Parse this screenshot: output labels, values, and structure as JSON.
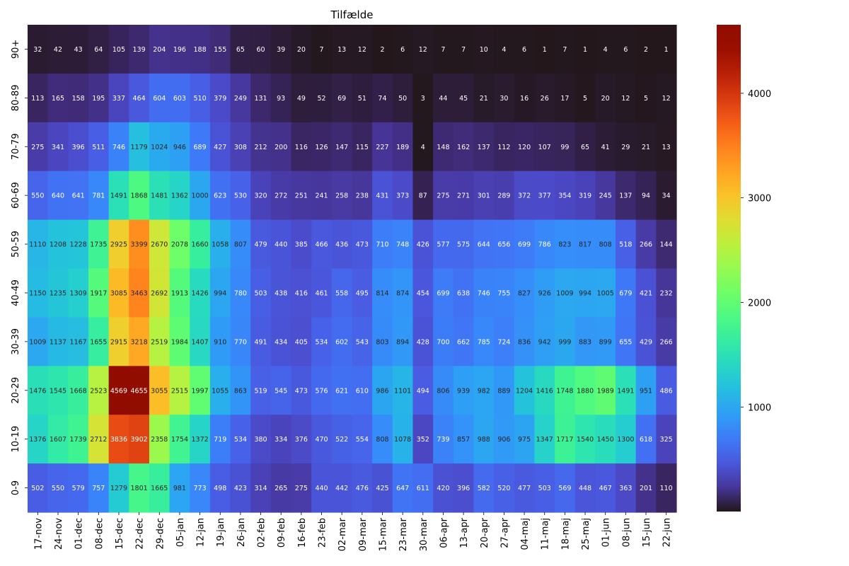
{
  "chart_data": {
    "type": "heatmap",
    "title": "Tilfælde",
    "x_categories": [
      "17-nov",
      "24-nov",
      "01-dec",
      "08-dec",
      "15-dec",
      "22-dec",
      "29-dec",
      "05-jan",
      "12-jan",
      "19-jan",
      "26-jan",
      "02-feb",
      "09-feb",
      "16-feb",
      "23-feb",
      "02-mar",
      "09-mar",
      "15-mar",
      "23-mar",
      "30-mar",
      "06-apr",
      "13-apr",
      "20-apr",
      "27-apr",
      "04-maj",
      "11-maj",
      "18-maj",
      "25-maj",
      "01-jun",
      "08-jun",
      "15-jun",
      "22-jun"
    ],
    "y_categories": [
      "90+",
      "80-89",
      "70-79",
      "60-69",
      "50-59",
      "40-49",
      "30-39",
      "20-29",
      "10-19",
      "0-9"
    ],
    "values": [
      [
        32,
        42,
        43,
        64,
        105,
        139,
        204,
        196,
        188,
        155,
        65,
        60,
        39,
        20,
        7,
        13,
        12,
        2,
        6,
        12,
        7,
        7,
        10,
        4,
        6,
        1,
        7,
        1,
        4,
        6,
        2,
        1
      ],
      [
        113,
        165,
        158,
        195,
        337,
        464,
        604,
        603,
        510,
        379,
        249,
        131,
        93,
        49,
        52,
        69,
        51,
        74,
        50,
        3,
        44,
        45,
        21,
        30,
        16,
        26,
        17,
        5,
        20,
        12,
        5,
        12
      ],
      [
        275,
        341,
        396,
        511,
        746,
        1179,
        1024,
        946,
        689,
        427,
        308,
        212,
        200,
        116,
        126,
        147,
        115,
        227,
        189,
        4,
        148,
        162,
        137,
        112,
        120,
        107,
        99,
        65,
        41,
        29,
        21,
        13
      ],
      [
        550,
        640,
        641,
        781,
        1491,
        1868,
        1481,
        1362,
        1000,
        623,
        530,
        320,
        272,
        251,
        241,
        258,
        238,
        431,
        373,
        87,
        275,
        271,
        301,
        289,
        372,
        377,
        354,
        319,
        245,
        137,
        94,
        34
      ],
      [
        1110,
        1208,
        1228,
        1735,
        2925,
        3399,
        2670,
        2078,
        1660,
        1058,
        807,
        479,
        440,
        385,
        466,
        436,
        473,
        710,
        748,
        426,
        577,
        575,
        644,
        656,
        699,
        786,
        823,
        817,
        808,
        518,
        266,
        144
      ],
      [
        1150,
        1235,
        1309,
        1917,
        3085,
        3463,
        2692,
        1913,
        1426,
        994,
        780,
        503,
        438,
        416,
        461,
        558,
        495,
        814,
        874,
        454,
        699,
        638,
        746,
        755,
        827,
        926,
        1009,
        994,
        1005,
        679,
        421,
        232
      ],
      [
        1009,
        1137,
        1167,
        1655,
        2915,
        3218,
        2519,
        1984,
        1407,
        910,
        770,
        491,
        434,
        405,
        534,
        602,
        543,
        803,
        894,
        428,
        700,
        662,
        785,
        724,
        836,
        942,
        999,
        883,
        899,
        655,
        429,
        266
      ],
      [
        1476,
        1545,
        1668,
        2523,
        4569,
        4655,
        3055,
        2515,
        1997,
        1055,
        863,
        519,
        545,
        473,
        576,
        621,
        610,
        986,
        1101,
        494,
        806,
        939,
        982,
        889,
        1204,
        1416,
        1748,
        1880,
        1989,
        1491,
        951,
        486
      ],
      [
        1376,
        1607,
        1739,
        2712,
        3836,
        3902,
        2358,
        1754,
        1372,
        719,
        534,
        380,
        334,
        376,
        470,
        522,
        554,
        808,
        1078,
        352,
        739,
        857,
        988,
        906,
        975,
        1347,
        1717,
        1540,
        1450,
        1300,
        618,
        325
      ],
      [
        502,
        550,
        579,
        757,
        1279,
        1801,
        1665,
        981,
        773,
        498,
        423,
        314,
        265,
        275,
        440,
        442,
        476,
        425,
        647,
        611,
        420,
        396,
        582,
        520,
        477,
        503,
        569,
        448,
        467,
        363,
        201,
        110
      ]
    ],
    "colormap": "turbo",
    "vmin": 1,
    "vmax": 4655,
    "colorbar_ticks": [
      1000,
      2000,
      3000,
      4000
    ],
    "annotated": true
  }
}
